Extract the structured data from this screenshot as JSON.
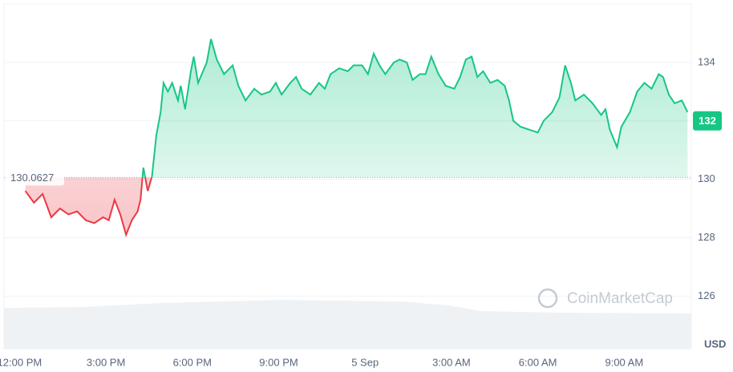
{
  "chart_data": {
    "type": "line",
    "watermark": "CoinMarketCap",
    "y_unit": "USD",
    "baseline": 130.0627,
    "current_price": 132,
    "up_color": "#16c784",
    "down_color": "#ea3943",
    "grid": true,
    "xlim": [
      -0.54,
      23.33
    ],
    "ylim": [
      124.2,
      136
    ],
    "yticks": [
      126,
      128,
      130,
      134
    ],
    "xticks": [
      {
        "value": 0,
        "label": "12:00 PM"
      },
      {
        "value": 3,
        "label": "3:00 PM"
      },
      {
        "value": 6,
        "label": "6:00 PM"
      },
      {
        "value": 9,
        "label": "9:00 PM"
      },
      {
        "value": 12,
        "label": "5 Sep"
      },
      {
        "value": 15,
        "label": "3:00 AM"
      },
      {
        "value": 18,
        "label": "6:00 AM"
      },
      {
        "value": 21,
        "label": "9:00 AM"
      }
    ],
    "x": [
      0.2,
      0.5,
      0.8,
      1.1,
      1.4,
      1.7,
      2.0,
      2.3,
      2.6,
      2.9,
      3.1,
      3.3,
      3.5,
      3.7,
      3.9,
      4.1,
      4.2,
      4.3,
      4.45,
      4.6,
      4.75,
      4.9,
      5.0,
      5.15,
      5.3,
      5.5,
      5.6,
      5.75,
      5.95,
      6.05,
      6.2,
      6.5,
      6.65,
      6.85,
      7.1,
      7.4,
      7.6,
      7.85,
      8.15,
      8.4,
      8.7,
      8.9,
      9.1,
      9.4,
      9.6,
      9.8,
      10.1,
      10.4,
      10.6,
      10.8,
      11.1,
      11.4,
      11.6,
      11.9,
      12.1,
      12.3,
      12.5,
      12.7,
      13.0,
      13.2,
      13.45,
      13.65,
      13.9,
      14.1,
      14.3,
      14.55,
      14.8,
      15.1,
      15.3,
      15.5,
      15.7,
      15.9,
      16.1,
      16.35,
      16.6,
      16.85,
      17.0,
      17.15,
      17.4,
      17.7,
      18.0,
      18.2,
      18.5,
      18.75,
      18.95,
      19.15,
      19.3,
      19.6,
      19.9,
      20.2,
      20.35,
      20.5,
      20.75,
      20.9,
      21.2,
      21.45,
      21.7,
      21.95,
      22.2,
      22.35,
      22.55,
      22.75,
      23.0,
      23.2
    ],
    "values": [
      129.6,
      129.2,
      129.5,
      128.7,
      129.0,
      128.8,
      128.9,
      128.6,
      128.5,
      128.7,
      128.6,
      129.3,
      128.8,
      128.1,
      128.6,
      128.9,
      129.3,
      130.4,
      129.6,
      130.1,
      131.5,
      132.3,
      133.3,
      133.0,
      133.3,
      132.7,
      133.2,
      132.4,
      133.7,
      134.2,
      133.3,
      134.0,
      134.8,
      134.1,
      133.6,
      133.9,
      133.2,
      132.7,
      133.1,
      132.9,
      133.0,
      133.3,
      132.9,
      133.3,
      133.5,
      133.1,
      132.9,
      133.3,
      133.1,
      133.6,
      133.8,
      133.7,
      133.9,
      133.9,
      133.6,
      134.3,
      133.9,
      133.6,
      134.0,
      134.1,
      134.0,
      133.4,
      133.6,
      133.6,
      134.2,
      133.6,
      133.2,
      133.1,
      133.5,
      134.1,
      134.2,
      133.5,
      133.7,
      133.3,
      133.4,
      133.2,
      132.7,
      132.0,
      131.8,
      131.7,
      131.6,
      132.0,
      132.3,
      132.8,
      133.9,
      133.3,
      132.7,
      132.9,
      132.6,
      132.2,
      132.4,
      131.7,
      131.1,
      131.8,
      132.3,
      133.0,
      133.3,
      133.1,
      133.6,
      133.5,
      132.9,
      132.6,
      132.7,
      132.3
    ]
  }
}
